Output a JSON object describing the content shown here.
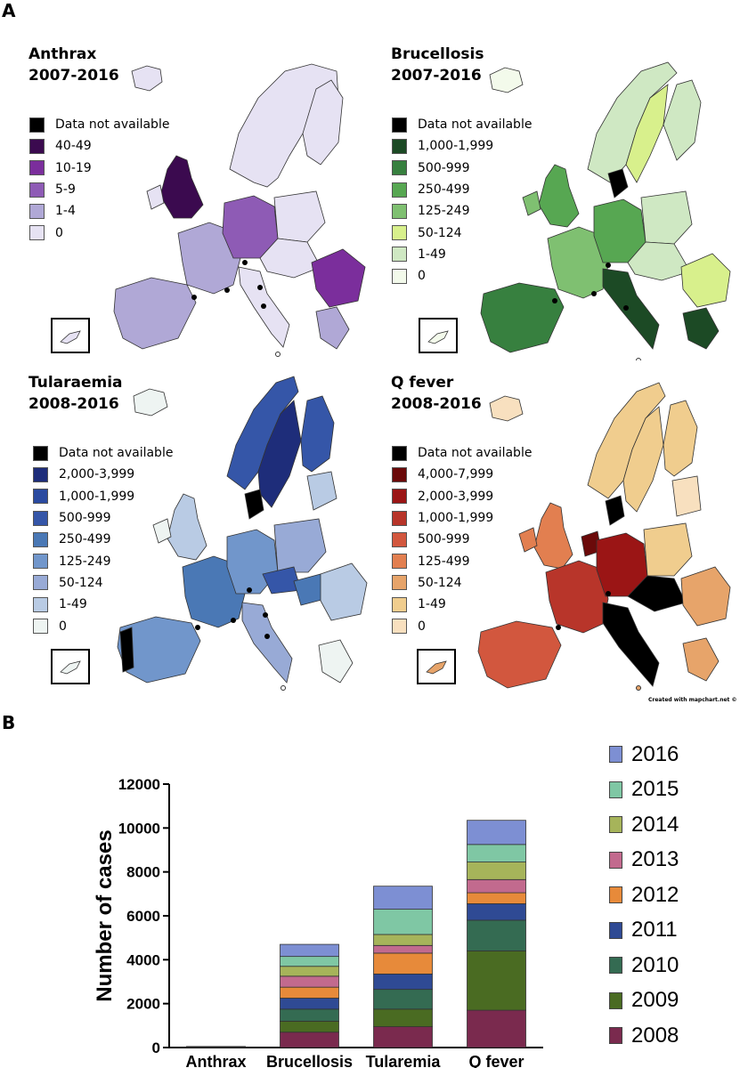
{
  "panel_a": "A",
  "panel_b": "B",
  "credit": "Created with mapchart.net ©",
  "maps": [
    {
      "title_line1": "Anthrax",
      "title_line2": "2007-2016",
      "legend": [
        {
          "label": "Data not available",
          "color": "#000000"
        },
        {
          "label": "40-49",
          "color": "#3b0a4f"
        },
        {
          "label": "10-19",
          "color": "#7b2e9c"
        },
        {
          "label": "5-9",
          "color": "#8e5bb5"
        },
        {
          "label": "1-4",
          "color": "#b0a8d6"
        },
        {
          "label": "0",
          "color": "#e6e2f3"
        }
      ]
    },
    {
      "title_line1": "Brucellosis",
      "title_line2": "2007-2016",
      "legend": [
        {
          "label": "Data not available",
          "color": "#000000"
        },
        {
          "label": "1,000-1,999",
          "color": "#1c4a25"
        },
        {
          "label": "500-999",
          "color": "#37803f"
        },
        {
          "label": "250-499",
          "color": "#57a752"
        },
        {
          "label": "125-249",
          "color": "#7fc071"
        },
        {
          "label": "50-124",
          "color": "#d8f08c"
        },
        {
          "label": "1-49",
          "color": "#cfe8c3"
        },
        {
          "label": "0",
          "color": "#f3faeb"
        }
      ]
    },
    {
      "title_line1": "Tularaemia",
      "title_line2": "2008-2016",
      "legend": [
        {
          "label": "Data not available",
          "color": "#000000"
        },
        {
          "label": "2,000-3,999",
          "color": "#1e2d7a"
        },
        {
          "label": "1,000-1,999",
          "color": "#2a4aa0"
        },
        {
          "label": "500-999",
          "color": "#3556a8"
        },
        {
          "label": "250-499",
          "color": "#4a78b5"
        },
        {
          "label": "125-249",
          "color": "#7196cb"
        },
        {
          "label": "50-124",
          "color": "#98aad6"
        },
        {
          "label": "1-49",
          "color": "#b9cbe4"
        },
        {
          "label": "0",
          "color": "#eef4f2"
        }
      ]
    },
    {
      "title_line1": "Q fever",
      "title_line2": "2008-2016",
      "legend": [
        {
          "label": "Data not available",
          "color": "#000000"
        },
        {
          "label": "4,000-7,999",
          "color": "#6b0a0a"
        },
        {
          "label": "2,000-3,999",
          "color": "#9b1515"
        },
        {
          "label": "1,000-1,999",
          "color": "#b8352a"
        },
        {
          "label": "500-999",
          "color": "#d2573e"
        },
        {
          "label": "125-499",
          "color": "#e27f50"
        },
        {
          "label": "50-124",
          "color": "#e7a46a"
        },
        {
          "label": "1-49",
          "color": "#f0cd8e"
        },
        {
          "label": "0",
          "color": "#f8e0bf"
        }
      ]
    }
  ],
  "chart_data": {
    "type": "bar",
    "stacked": true,
    "ylabel": "Number of cases",
    "xlabel": "",
    "ylim": [
      0,
      12000
    ],
    "yticks": [
      0,
      2000,
      4000,
      6000,
      8000,
      10000,
      12000
    ],
    "categories": [
      "Anthrax",
      "Brucellosis",
      "Tularemia",
      "Q fever"
    ],
    "series": [
      {
        "name": "2008",
        "color": "#7a2a4e",
        "values": [
          10,
          700,
          950,
          1700
        ]
      },
      {
        "name": "2009",
        "color": "#4a6b22",
        "values": [
          5,
          500,
          800,
          2700
        ]
      },
      {
        "name": "2010",
        "color": "#346b52",
        "values": [
          5,
          550,
          900,
          1400
        ]
      },
      {
        "name": "2011",
        "color": "#2f4a94",
        "values": [
          5,
          500,
          700,
          750
        ]
      },
      {
        "name": "2012",
        "color": "#e78a3a",
        "values": [
          5,
          500,
          950,
          500
        ]
      },
      {
        "name": "2013",
        "color": "#c26a8e",
        "values": [
          5,
          500,
          350,
          600
        ]
      },
      {
        "name": "2014",
        "color": "#a6b45a",
        "values": [
          5,
          450,
          500,
          800
        ]
      },
      {
        "name": "2015",
        "color": "#7fc7a4",
        "values": [
          5,
          450,
          1150,
          800
        ]
      },
      {
        "name": "2016",
        "color": "#7d8fd3",
        "values": [
          5,
          550,
          1050,
          1100
        ]
      }
    ],
    "legend_order": [
      "2016",
      "2015",
      "2014",
      "2013",
      "2012",
      "2011",
      "2010",
      "2009",
      "2008"
    ],
    "grid": false,
    "legend_position": "right"
  }
}
